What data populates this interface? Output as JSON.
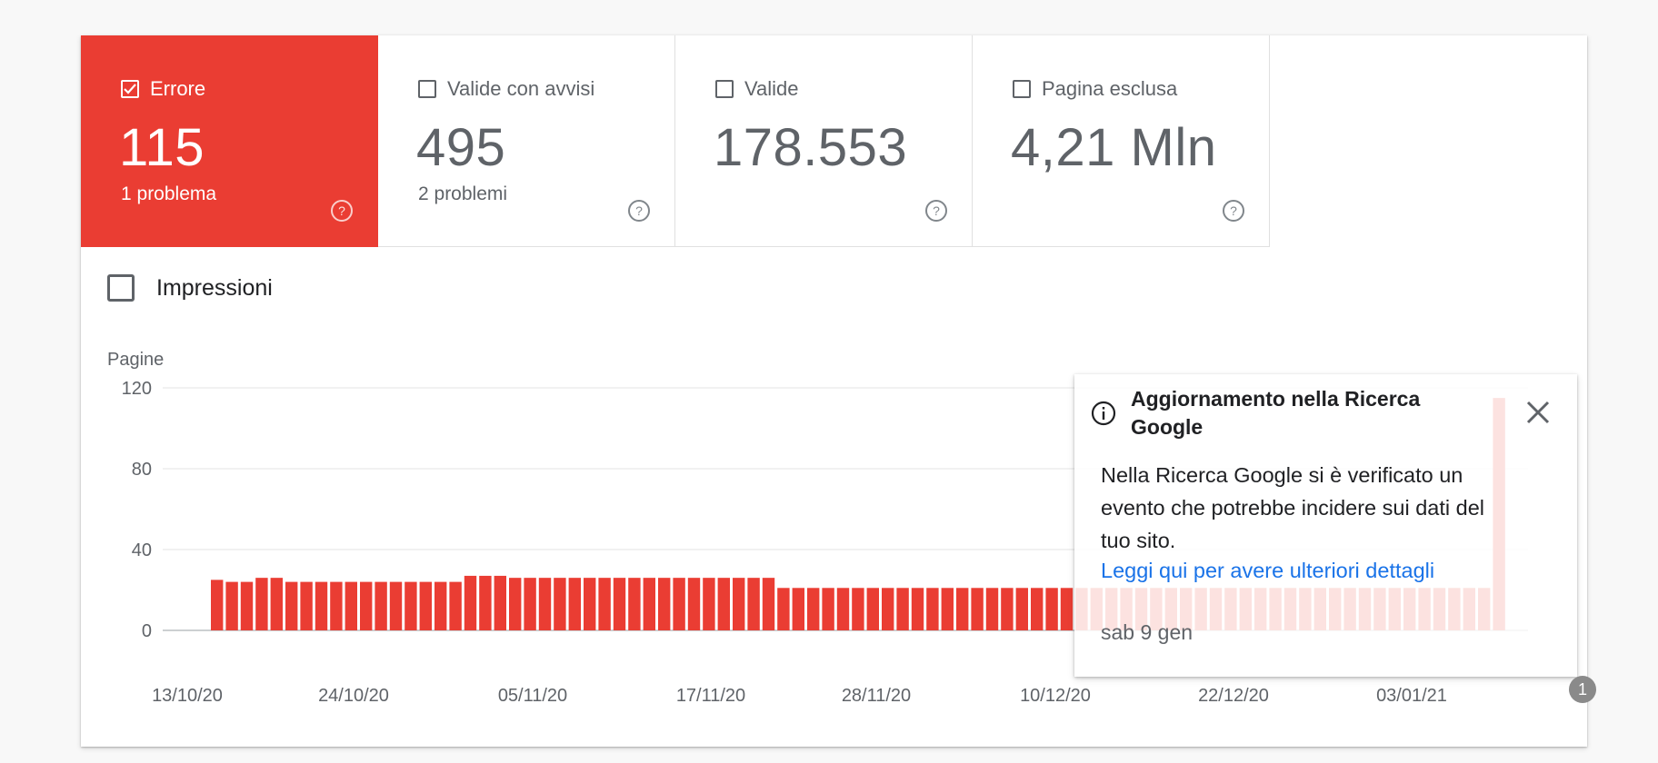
{
  "tiles": [
    {
      "label": "Errore",
      "value": "115",
      "sub": "1 problema",
      "checked": true
    },
    {
      "label": "Valide con avvisi",
      "value": "495",
      "sub": "2 problemi",
      "checked": false
    },
    {
      "label": "Valide",
      "value": "178.553",
      "sub": "",
      "checked": false
    },
    {
      "label": "Pagina esclusa",
      "value": "4,21 Mln",
      "sub": "",
      "checked": false
    }
  ],
  "impressions": {
    "label": "Impressioni",
    "checked": false
  },
  "popup": {
    "title": "Aggiornamento nella Ricerca Google",
    "body": "Nella Ricerca Google si è verificato un evento che potrebbe incidere sui dati del tuo sito.",
    "link": "Leggi qui per avere ulteriori dettagli",
    "date": "sab 9 gen"
  },
  "annotation_marker": "1",
  "colors": {
    "error": "#ea3d33",
    "link": "#1a73e8",
    "muted": "#5f6368"
  },
  "chart_data": {
    "type": "bar",
    "ylabel": "Pagine",
    "ylim": [
      0,
      120
    ],
    "yticks": [
      0,
      40,
      80,
      120
    ],
    "grid": true,
    "x_tick_labels": [
      "13/10/20",
      "24/10/20",
      "05/11/20",
      "17/11/20",
      "28/11/20",
      "10/12/20",
      "22/12/20",
      "03/01/21"
    ],
    "series": [
      {
        "color": "#ea3d33",
        "values": [
          25,
          24,
          24,
          26,
          26,
          24,
          24,
          24,
          24,
          24,
          24,
          24,
          24,
          24,
          24,
          24,
          24,
          27,
          27,
          27,
          26,
          26,
          26,
          26,
          26,
          26,
          26,
          26,
          26,
          26,
          26,
          26,
          26,
          26,
          26,
          26,
          26,
          26,
          21,
          21,
          21,
          21,
          21,
          21,
          21,
          21,
          21,
          21,
          21,
          21,
          21,
          21,
          21,
          21,
          21,
          21,
          21,
          21,
          21,
          21,
          21,
          21,
          21,
          21,
          21,
          21,
          21,
          21,
          21,
          21,
          21,
          21,
          21,
          21,
          21,
          21,
          21,
          21,
          21,
          21,
          21,
          21,
          21,
          21,
          21,
          21,
          115
        ]
      }
    ]
  }
}
